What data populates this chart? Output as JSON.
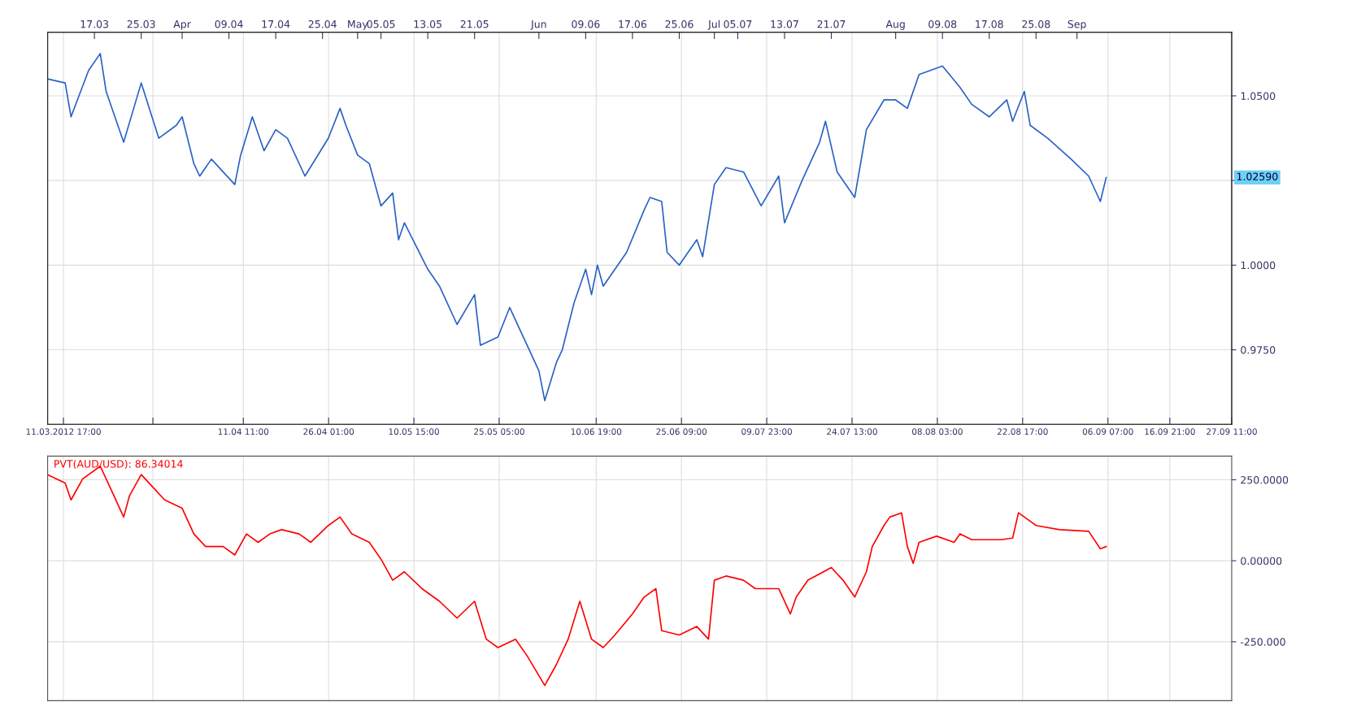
{
  "chart_data": [
    {
      "type": "line",
      "grid": true,
      "marker": "none",
      "line_style": "solid",
      "x": [
        "2012-03-09",
        "2012-03-12",
        "2012-03-13",
        "2012-03-16",
        "2012-03-18",
        "2012-03-19",
        "2012-03-22",
        "2012-03-25",
        "2012-03-28",
        "2012-03-31",
        "2012-04-01",
        "2012-04-03",
        "2012-04-04",
        "2012-04-06",
        "2012-04-10",
        "2012-04-11",
        "2012-04-13",
        "2012-04-15",
        "2012-04-17",
        "2012-04-19",
        "2012-04-22",
        "2012-04-26",
        "2012-04-28",
        "2012-04-29",
        "2012-05-01",
        "2012-05-03",
        "2012-05-05",
        "2012-05-07",
        "2012-05-08",
        "2012-05-09",
        "2012-05-13",
        "2012-05-15",
        "2012-05-18",
        "2012-05-21",
        "2012-05-22",
        "2012-05-25",
        "2012-05-27",
        "2012-05-29",
        "2012-06-01",
        "2012-06-02",
        "2012-06-04",
        "2012-06-05",
        "2012-06-07",
        "2012-06-09",
        "2012-06-10",
        "2012-06-11",
        "2012-06-12",
        "2012-06-16",
        "2012-06-19",
        "2012-06-20",
        "2012-06-22",
        "2012-06-22T22:00",
        "2012-06-25",
        "2012-06-28",
        "2012-06-29",
        "2012-07-01",
        "2012-07-03",
        "2012-07-06",
        "2012-07-09",
        "2012-07-12",
        "2012-07-13",
        "2012-07-16",
        "2012-07-19",
        "2012-07-20",
        "2012-07-22",
        "2012-07-25",
        "2012-07-27",
        "2012-07-30",
        "2012-08-01",
        "2012-08-03",
        "2012-08-05",
        "2012-08-09",
        "2012-08-12",
        "2012-08-14",
        "2012-08-17",
        "2012-08-20",
        "2012-08-21",
        "2012-08-23",
        "2012-08-24",
        "2012-08-27",
        "2012-08-31",
        "2012-09-03",
        "2012-09-05",
        "2012-09-06"
      ],
      "series": [
        {
          "color": "#2a62c4",
          "values": [
            1.055,
            1.0538,
            1.0438,
            1.0575,
            1.0625,
            1.0513,
            1.0363,
            1.0538,
            1.0375,
            1.0413,
            1.0438,
            1.03,
            1.0263,
            1.0313,
            1.0238,
            1.0325,
            1.0438,
            1.0338,
            1.04,
            1.0375,
            1.0263,
            1.0375,
            1.0463,
            1.0413,
            1.0325,
            1.03,
            1.0175,
            1.0213,
            1.0075,
            1.0125,
            0.9988,
            0.9938,
            0.9825,
            0.9913,
            0.9763,
            0.9788,
            0.9875,
            0.98,
            0.9688,
            0.96,
            0.9713,
            0.975,
            0.9888,
            0.9988,
            0.9913,
            1.0,
            0.9938,
            1.0038,
            1.0163,
            1.02,
            1.0188,
            1.0038,
            1.0,
            1.0075,
            1.0025,
            1.0238,
            1.0288,
            1.0275,
            1.0175,
            1.0263,
            1.0125,
            1.025,
            1.0363,
            1.0425,
            1.0275,
            1.02,
            1.04,
            1.0488,
            1.0488,
            1.0463,
            1.0563,
            1.0588,
            1.0525,
            1.0475,
            1.0438,
            1.0488,
            1.0425,
            1.0513,
            1.0413,
            1.0375,
            1.0313,
            1.0263,
            1.0188,
            1.0259
          ]
        }
      ],
      "xlim": [
        "2012-03-09",
        "2012-09-27T11:00"
      ],
      "xticks": [
        {
          "value": "2012-03-11T17:00",
          "label": "11.03.2012 17:00"
        },
        {
          "value": "2012-03-27",
          "label": null
        },
        {
          "value": "2012-04-11T11:00",
          "label": "11.04 11:00"
        },
        {
          "value": "2012-04-26T01:00",
          "label": "26.04 01:00"
        },
        {
          "value": "2012-05-10T15:00",
          "label": "10.05 15:00"
        },
        {
          "value": "2012-05-25T05:00",
          "label": "25.05 05:00"
        },
        {
          "value": "2012-06-10T19:00",
          "label": "10.06 19:00"
        },
        {
          "value": "2012-06-25T09:00",
          "label": "25.06 09:00"
        },
        {
          "value": "2012-07-09T23:00",
          "label": "09.07 23:00"
        },
        {
          "value": "2012-07-24T13:00",
          "label": "24.07 13:00"
        },
        {
          "value": "2012-08-08T03:00",
          "label": "08.08 03:00"
        },
        {
          "value": "2012-08-22T17:00",
          "label": "22.08 17:00"
        },
        {
          "value": "2012-09-06T07:00",
          "label": "06.09 07:00"
        },
        {
          "value": "2012-09-16T21:00",
          "label": "16.09 21:00"
        },
        {
          "value": "2012-09-27T11:00",
          "label": "27.09 11:00"
        }
      ],
      "x2lim": [
        "2012-03-09",
        "2012-09-27T11:00"
      ],
      "x2ticks": [
        {
          "value": "2012-03-17",
          "label": "17.03"
        },
        {
          "value": "2012-03-25",
          "label": "25.03"
        },
        {
          "value": "2012-04-01",
          "label": "Apr"
        },
        {
          "value": "2012-04-09",
          "label": "09.04"
        },
        {
          "value": "2012-04-17",
          "label": "17.04"
        },
        {
          "value": "2012-04-25",
          "label": "25.04"
        },
        {
          "value": "2012-05-01",
          "label": "May"
        },
        {
          "value": "2012-05-05",
          "label": "05.05"
        },
        {
          "value": "2012-05-13",
          "label": "13.05"
        },
        {
          "value": "2012-05-21",
          "label": "21.05"
        },
        {
          "value": "2012-06-01",
          "label": "Jun"
        },
        {
          "value": "2012-06-09",
          "label": "09.06"
        },
        {
          "value": "2012-06-17",
          "label": "17.06"
        },
        {
          "value": "2012-06-25",
          "label": "25.06"
        },
        {
          "value": "2012-07-01",
          "label": "Jul"
        },
        {
          "value": "2012-07-05",
          "label": "05.07"
        },
        {
          "value": "2012-07-13",
          "label": "13.07"
        },
        {
          "value": "2012-07-21",
          "label": "21.07"
        },
        {
          "value": "2012-08-01",
          "label": "Aug"
        },
        {
          "value": "2012-08-09",
          "label": "09.08"
        },
        {
          "value": "2012-08-17",
          "label": "17.08"
        },
        {
          "value": "2012-08-25",
          "label": "25.08"
        },
        {
          "value": "2012-09-01",
          "label": "Sep"
        }
      ],
      "ylim": [
        0.953,
        1.0688
      ],
      "yticks": [
        {
          "value": 0.975,
          "label": "0.9750"
        },
        {
          "value": 1.0,
          "label": "1.0000"
        },
        {
          "value": 1.025,
          "label": null
        },
        {
          "value": 1.05,
          "label": "1.0500"
        }
      ],
      "annotations": [
        "1.02590"
      ]
    },
    {
      "type": "line",
      "grid": true,
      "marker": "none",
      "line_style": "solid",
      "tick_labels": "y",
      "x": [
        "2012-03-09",
        "2012-03-12",
        "2012-03-13",
        "2012-03-15",
        "2012-03-18",
        "2012-03-20",
        "2012-03-22",
        "2012-03-23",
        "2012-03-25",
        "2012-03-27",
        "2012-03-29",
        "2012-04-01",
        "2012-04-03",
        "2012-04-05",
        "2012-04-08",
        "2012-04-10",
        "2012-04-12",
        "2012-04-14",
        "2012-04-16",
        "2012-04-18",
        "2012-04-21",
        "2012-04-23",
        "2012-04-26",
        "2012-04-28",
        "2012-04-30",
        "2012-05-03",
        "2012-05-05",
        "2012-05-07",
        "2012-05-09",
        "2012-05-12",
        "2012-05-15",
        "2012-05-18",
        "2012-05-21",
        "2012-05-23",
        "2012-05-25",
        "2012-05-28",
        "2012-05-30",
        "2012-06-02",
        "2012-06-04",
        "2012-06-06",
        "2012-06-08",
        "2012-06-10",
        "2012-06-12",
        "2012-06-14",
        "2012-06-17",
        "2012-06-19",
        "2012-06-21",
        "2012-06-22",
        "2012-06-25",
        "2012-06-28",
        "2012-06-30",
        "2012-07-01",
        "2012-07-03",
        "2012-07-06",
        "2012-07-08",
        "2012-07-12",
        "2012-07-14",
        "2012-07-15",
        "2012-07-17",
        "2012-07-21",
        "2012-07-23",
        "2012-07-25",
        "2012-07-27",
        "2012-07-28",
        "2012-07-30",
        "2012-07-31",
        "2012-08-02",
        "2012-08-03",
        "2012-08-04",
        "2012-08-05",
        "2012-08-08",
        "2012-08-11",
        "2012-08-12",
        "2012-08-14",
        "2012-08-19",
        "2012-08-21",
        "2012-08-22",
        "2012-08-25",
        "2012-08-29",
        "2012-09-03",
        "2012-09-05",
        "2012-09-06"
      ],
      "series": [
        {
          "color": "#ff0000",
          "values": [
            266,
            240,
            188,
            253,
            292,
            214,
            135,
            201,
            266,
            227,
            188,
            162,
            83,
            44,
            44,
            18,
            83,
            57,
            83,
            96,
            83,
            57,
            109,
            135,
            83,
            57,
            5,
            -60,
            -34,
            -86,
            -125,
            -177,
            -125,
            -242,
            -268,
            -242,
            -294,
            -385,
            -320,
            -242,
            -125,
            -242,
            -268,
            -229,
            -164,
            -112,
            -86,
            -216,
            -229,
            -203,
            -242,
            -60,
            -47,
            -60,
            -86,
            -86,
            -164,
            -112,
            -60,
            -21,
            -60,
            -112,
            -34,
            44,
            109,
            135,
            148,
            44,
            -8,
            57,
            76,
            57,
            83,
            65,
            65,
            70,
            148,
            109,
            96,
            91,
            37,
            44
          ]
        }
      ],
      "xlim": [
        "2012-03-09",
        "2012-09-27T11:00"
      ],
      "xticks": [
        {
          "value": "2012-03-11T17:00",
          "label": null
        },
        {
          "value": "2012-03-27",
          "label": null
        },
        {
          "value": "2012-04-11T11:00",
          "label": null
        },
        {
          "value": "2012-04-26T01:00",
          "label": null
        },
        {
          "value": "2012-05-10T15:00",
          "label": null
        },
        {
          "value": "2012-05-25T05:00",
          "label": null
        },
        {
          "value": "2012-06-10T19:00",
          "label": null
        },
        {
          "value": "2012-06-25T09:00",
          "label": null
        },
        {
          "value": "2012-07-09T23:00",
          "label": null
        },
        {
          "value": "2012-07-24T13:00",
          "label": null
        },
        {
          "value": "2012-08-08T03:00",
          "label": null
        },
        {
          "value": "2012-08-22T17:00",
          "label": null
        },
        {
          "value": "2012-09-06T07:00",
          "label": null
        },
        {
          "value": "2012-09-16T21:00",
          "label": null
        },
        {
          "value": "2012-09-27T11:00",
          "label": null
        }
      ],
      "ylim": [
        -432,
        323
      ],
      "yticks": [
        {
          "value": 250,
          "label": "250.0000"
        },
        {
          "value": 0,
          "label": "0.00000"
        },
        {
          "value": -250,
          "label": "-250.000"
        }
      ],
      "title": "PVT(AUD/USD): 86.34014"
    }
  ]
}
